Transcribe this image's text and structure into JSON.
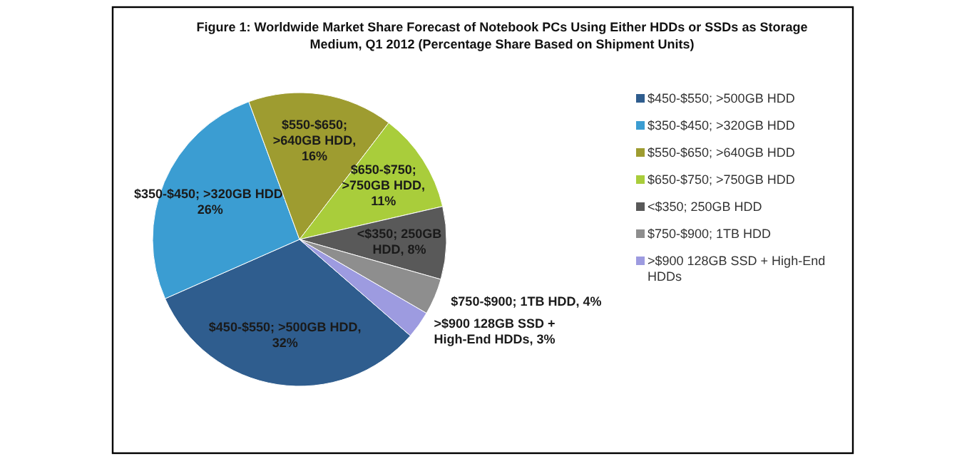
{
  "chart_data": {
    "type": "pie",
    "title": "Figure 1: Worldwide Market Share Forecast of Notebook PCs Using Either HDDs or SSDs as Storage Medium, Q1 2012 (Percentage Share Based on Shipment Units)",
    "categories": [
      "$450-$550; >500GB HDD",
      "$350-$450; >320GB HDD",
      "$550-$650; >640GB HDD",
      "$650-$750; >750GB HDD",
      "<$350; 250GB HDD",
      "$750-$900; 1TB HDD",
      ">$900 128GB SSD + High-End HDDs"
    ],
    "values": [
      32,
      26,
      16,
      11,
      8,
      4,
      3
    ],
    "value_labels": [
      "$450-$550; >500GB HDD, 32%",
      "$350-$450; >320GB HDD, 26%",
      "$550-$650; >640GB HDD, 16%",
      "$650-$750; >750GB HDD, 11%",
      "<$350; 250GB HDD, 8%",
      "$750-$900; 1TB HDD, 4%",
      ">$900 128GB SSD + High-End HDDs, 3%"
    ],
    "colors": [
      "#2f5d8e",
      "#3b9dd2",
      "#9e9c30",
      "#a9cd3b",
      "#595959",
      "#8e8e8e",
      "#9d9be0"
    ],
    "legend": "right"
  }
}
